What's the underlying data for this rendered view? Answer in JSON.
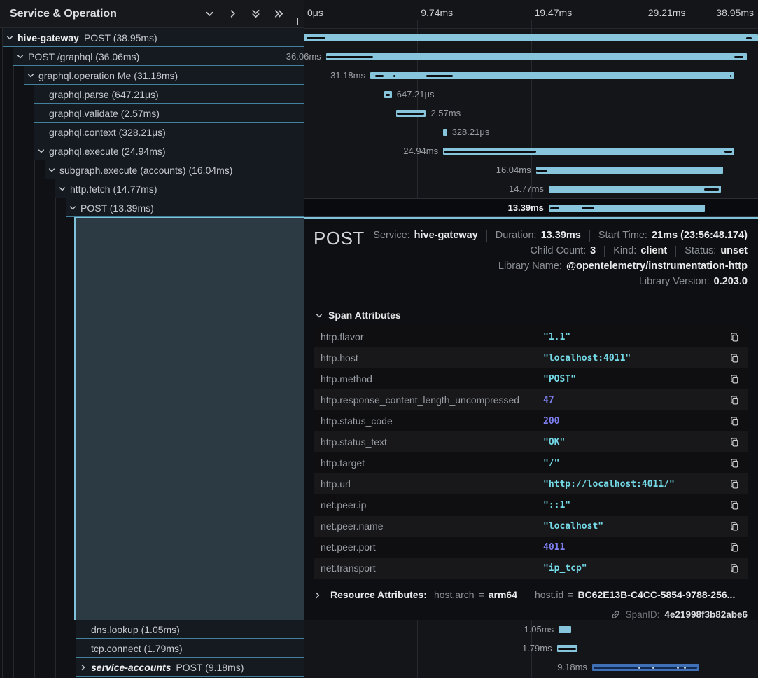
{
  "colors": {
    "bar": "#86c5db",
    "alt_bar": "#3f70b6",
    "accent": "#7ec3d9",
    "value_string": "#74d9e6",
    "value_number": "#7d7ff0",
    "row_border": "#43809c"
  },
  "left_header": {
    "title": "Service & Operation",
    "buttons": [
      {
        "icon": "chevron-down"
      },
      {
        "icon": "chevron-right"
      },
      {
        "icon": "chevrons-down"
      },
      {
        "icon": "chevrons-right"
      }
    ]
  },
  "ruler": {
    "ticks": [
      "0μs",
      "9.74ms",
      "19.47ms",
      "29.21ms",
      "38.95ms"
    ]
  },
  "trace": {
    "total_ms": 38.95,
    "rows": [
      {
        "service": "hive-gateway",
        "op": "POST (38.95ms)",
        "depth": 0,
        "chevron": "down",
        "start": 0,
        "dur": 38.95,
        "label": null,
        "side": null,
        "ticks": [
          [
            0.25,
            1.6
          ],
          [
            37.9,
            0.5
          ]
        ]
      },
      {
        "op": "POST /graphql (36.06ms)",
        "depth": 1,
        "chevron": "down",
        "start": 1.9,
        "dur": 36.06,
        "label": "36.06ms",
        "side": "left",
        "ticks": [
          [
            1.95,
            4.0
          ],
          [
            36.9,
            0.8
          ]
        ]
      },
      {
        "op": "graphql.operation Me (31.18ms)",
        "depth": 2,
        "chevron": "down",
        "start": 5.7,
        "dur": 31.18,
        "label": "31.18ms",
        "side": "left",
        "ticks": [
          [
            6.1,
            0.75
          ],
          [
            7.66,
            0.2
          ],
          [
            10.5,
            2.3
          ],
          [
            36.55,
            0.15
          ]
        ]
      },
      {
        "op": "graphql.parse (647.21μs)",
        "depth": 3,
        "chevron": null,
        "start": 6.9,
        "dur": 0.647,
        "label": "647.21μs",
        "side": "right",
        "ticks": [
          [
            7.0,
            0.4
          ]
        ]
      },
      {
        "op": "graphql.validate (2.57ms)",
        "depth": 3,
        "chevron": null,
        "start": 7.9,
        "dur": 2.57,
        "label": "2.57ms",
        "side": "right",
        "ticks": [
          [
            8.0,
            2.3
          ]
        ]
      },
      {
        "op": "graphql.context (328.21μs)",
        "depth": 3,
        "chevron": null,
        "start": 11.95,
        "dur": 0.328,
        "label": "328.21μs",
        "side": "right",
        "ticks": []
      },
      {
        "op": "graphql.execute (24.94ms)",
        "depth": 3,
        "chevron": "down",
        "start": 11.95,
        "dur": 24.94,
        "label": "24.94ms",
        "side": "left",
        "ticks": [
          [
            12.0,
            7.9
          ],
          [
            36.05,
            0.7
          ]
        ]
      },
      {
        "op": "subgraph.execute (accounts) (16.04ms)",
        "depth": 4,
        "chevron": "down",
        "start": 19.9,
        "dur": 16.04,
        "label": "16.04ms",
        "side": "left",
        "ticks": [
          [
            19.95,
            0.95
          ]
        ]
      },
      {
        "op": "http.fetch (14.77ms)",
        "depth": 5,
        "chevron": "down",
        "start": 21.0,
        "dur": 14.77,
        "label": "14.77ms",
        "side": "left",
        "ticks": [
          [
            34.3,
            1.3
          ]
        ]
      },
      {
        "op": "POST (13.39ms)",
        "depth": 6,
        "chevron": "down",
        "start": 21.0,
        "dur": 13.39,
        "label": "13.39ms",
        "side": "left",
        "selected": true,
        "ticks": [
          [
            21.1,
            0.8
          ],
          [
            23.8,
            1.1
          ]
        ]
      }
    ],
    "bottom_rows": [
      {
        "op": "dns.lookup (1.05ms)",
        "depth": 7,
        "chevron": null,
        "start": 21.85,
        "dur": 1.05,
        "label": "1.05ms",
        "side": "left",
        "ticks": []
      },
      {
        "op": "tcp.connect (1.79ms)",
        "depth": 7,
        "chevron": null,
        "start": 21.7,
        "dur": 1.79,
        "label": "1.79ms",
        "side": "left",
        "ticks": [
          [
            21.8,
            1.55
          ]
        ]
      },
      {
        "service": "service-accounts",
        "italic": true,
        "op": "POST (9.18ms)",
        "depth": 7,
        "chevron": "right",
        "start": 24.72,
        "dur": 9.18,
        "label": "9.18ms",
        "side": "left",
        "color": "alt",
        "ticks": [
          [
            24.85,
            8.9
          ]
        ],
        "dots": [
          28.7,
          29.9,
          32.0,
          32.6
        ]
      }
    ]
  },
  "detail": {
    "title": "POST",
    "attributes_title": "Span Attributes",
    "meta_lines": [
      [
        {
          "label": "Service:",
          "value": "hive-gateway"
        },
        {
          "label": "Duration:",
          "value": "13.39ms"
        },
        {
          "label": "Start Time:",
          "value": "21ms (23:56:48.174)"
        }
      ],
      [
        {
          "label": "Child Count:",
          "value": "3"
        },
        {
          "label": "Kind:",
          "value": "client"
        },
        {
          "label": "Status:",
          "value": "unset"
        }
      ],
      [
        {
          "label": "Library Name:",
          "value": "@opentelemetry/instrumentation-http"
        }
      ],
      [
        {
          "label": "Library Version:",
          "value": "0.203.0"
        }
      ]
    ]
  },
  "attributes": [
    {
      "key": "http.flavor",
      "value": "\"1.1\"",
      "type": "str"
    },
    {
      "key": "http.host",
      "value": "\"localhost:4011\"",
      "type": "str"
    },
    {
      "key": "http.method",
      "value": "\"POST\"",
      "type": "str"
    },
    {
      "key": "http.response_content_length_uncompressed",
      "value": "47",
      "type": "num"
    },
    {
      "key": "http.status_code",
      "value": "200",
      "type": "num"
    },
    {
      "key": "http.status_text",
      "value": "\"OK\"",
      "type": "str"
    },
    {
      "key": "http.target",
      "value": "\"/\"",
      "type": "str"
    },
    {
      "key": "http.url",
      "value": "\"http://localhost:4011/\"",
      "type": "str"
    },
    {
      "key": "net.peer.ip",
      "value": "\"::1\"",
      "type": "str"
    },
    {
      "key": "net.peer.name",
      "value": "\"localhost\"",
      "type": "str"
    },
    {
      "key": "net.peer.port",
      "value": "4011",
      "type": "num"
    },
    {
      "key": "net.transport",
      "value": "\"ip_tcp\"",
      "type": "str"
    }
  ],
  "resource": {
    "title": "Resource Attributes:",
    "pairs": [
      {
        "key": "host.arch",
        "value": "arm64"
      },
      {
        "key": "host.id",
        "value": "BC62E13B-C4CC-5854-9788-256..."
      }
    ]
  },
  "footer": {
    "label": "SpanID:",
    "value": "4e21998f3b82abe6"
  }
}
